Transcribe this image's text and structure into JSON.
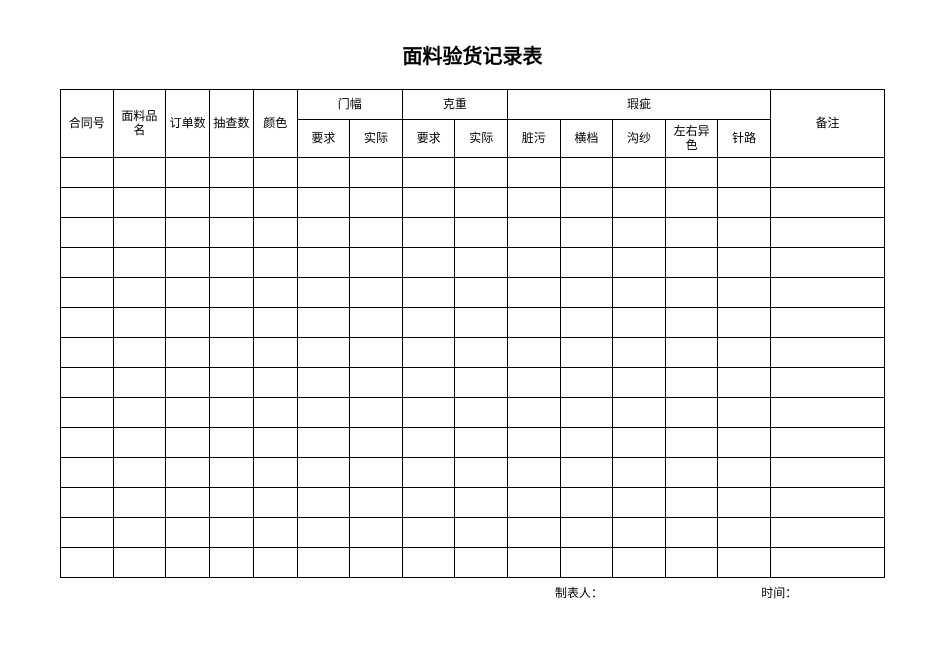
{
  "title": "面料验货记录表",
  "table": {
    "type": "table",
    "background_color": "#ffffff",
    "border_color": "#000000",
    "header_fontsize": 12,
    "title_fontsize": 20,
    "columns": [
      "合同号",
      "面料品名",
      "订单数",
      "抽查数",
      "颜色",
      "要求",
      "实际",
      "要求",
      "实际",
      "脏污",
      "横档",
      "沟纱",
      "左右异色",
      "针路",
      "备注"
    ],
    "group_headers": {
      "menbu": "门幅",
      "kezhong": "克重",
      "xiaci": "瑕疵"
    },
    "col1": "合同号",
    "col2": "面料品名",
    "col3": "订单数",
    "col4": "抽查数",
    "col5": "颜色",
    "col6": "要求",
    "col7": "实际",
    "col8": "要求",
    "col9": "实际",
    "col10": "脏污",
    "col11": "横档",
    "col12": "沟纱",
    "col13": "左右异色",
    "col14": "针路",
    "col15": "备注",
    "data_row_count": 14,
    "column_widths_pct": [
      6,
      6,
      5,
      5,
      5,
      6,
      6,
      6,
      6,
      6,
      6,
      6,
      6,
      6,
      13
    ]
  },
  "footer": {
    "maker_label": "制表人：",
    "maker_value": "",
    "time_label": "时间：",
    "time_value": ""
  }
}
